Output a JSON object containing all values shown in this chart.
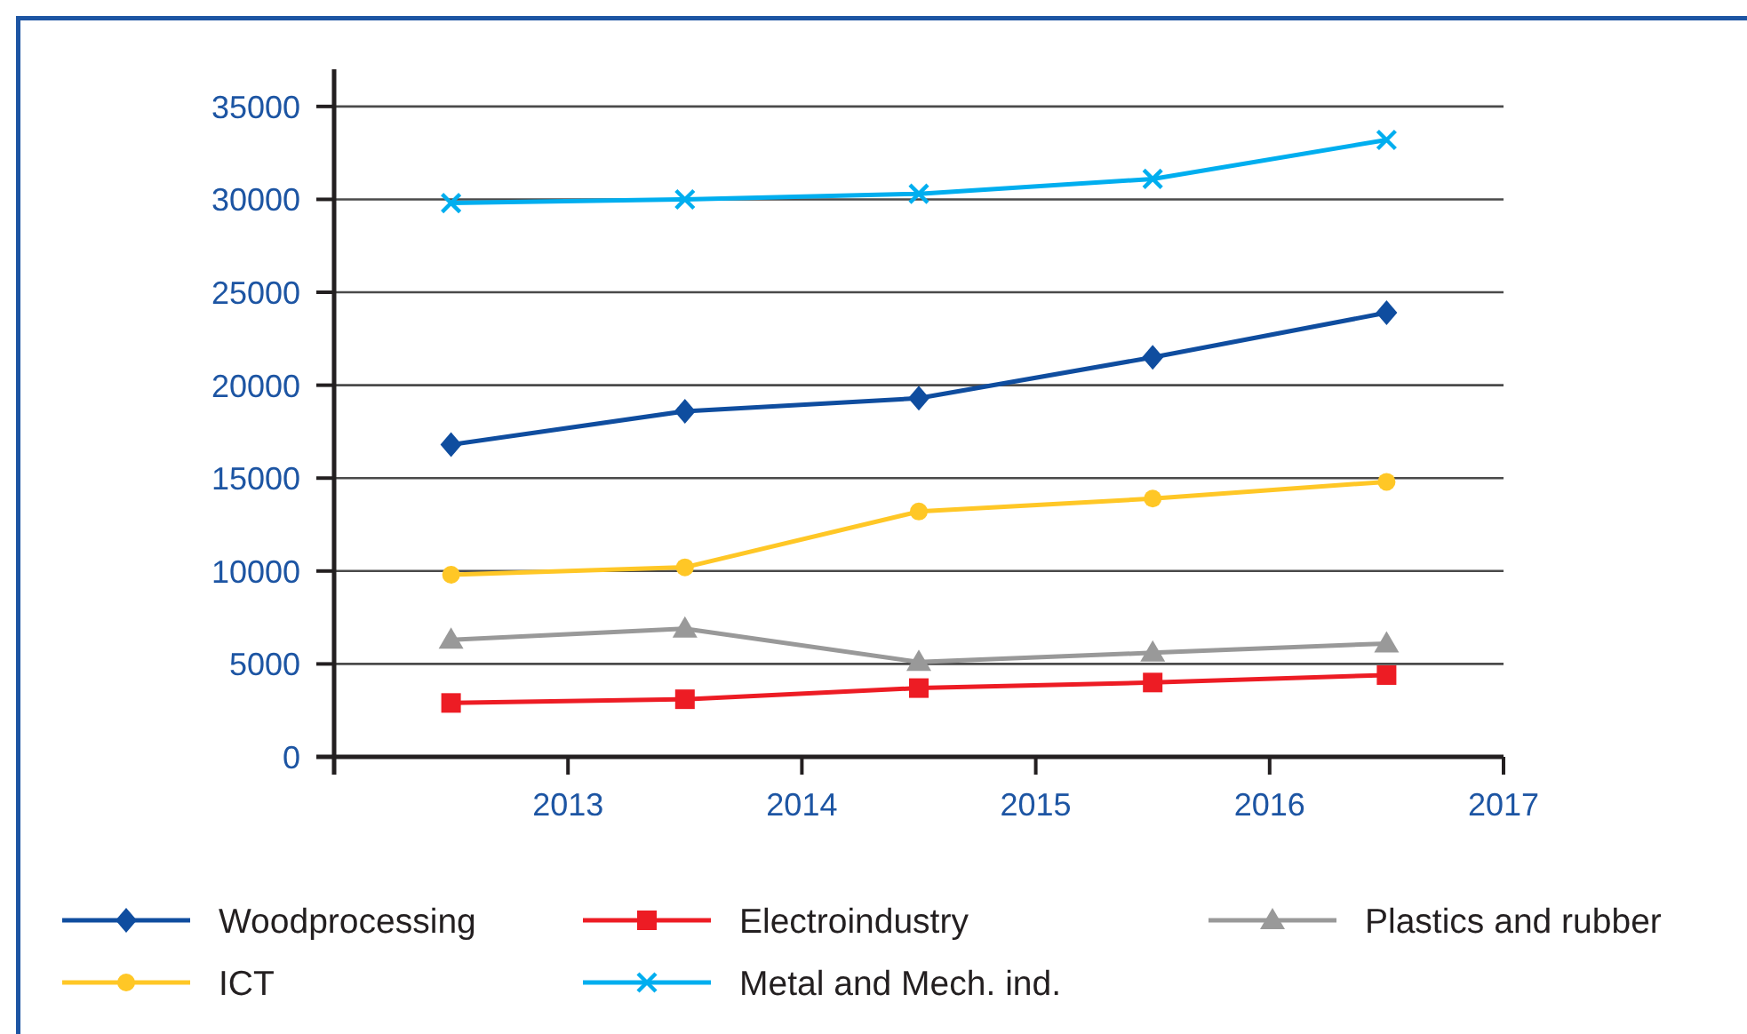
{
  "chart_data": {
    "type": "line",
    "x": [
      2012.5,
      2013.5,
      2014.5,
      2015.5,
      2016.5
    ],
    "xlim": [
      2012,
      2017
    ],
    "xticks": [
      2013,
      2014,
      2015,
      2016,
      2017
    ],
    "ylim": [
      0,
      37000
    ],
    "yticks": [
      0,
      5000,
      10000,
      15000,
      20000,
      25000,
      30000,
      35000
    ],
    "grid": "y",
    "legend": "bottom",
    "line_style": "solid",
    "series": [
      {
        "name": "Woodprocessing",
        "color": "#0f4d9f",
        "marker": "diamond",
        "values": [
          16800,
          18600,
          19300,
          21500,
          23900
        ]
      },
      {
        "name": "Electroindustry",
        "color": "#ed1c24",
        "marker": "square",
        "values": [
          2900,
          3100,
          3700,
          4000,
          4400
        ]
      },
      {
        "name": "Plastics and rubber",
        "color": "#999999",
        "marker": "triangle",
        "values": [
          6300,
          6900,
          5100,
          5600,
          6100
        ]
      },
      {
        "name": "ICT",
        "color": "#ffc726",
        "marker": "circle",
        "values": [
          9800,
          10200,
          13200,
          13900,
          14800
        ]
      },
      {
        "name": "Metal and Mech. ind.",
        "color": "#00aeef",
        "marker": "cross",
        "values": [
          29800,
          30000,
          30300,
          31100,
          33200
        ]
      }
    ]
  }
}
